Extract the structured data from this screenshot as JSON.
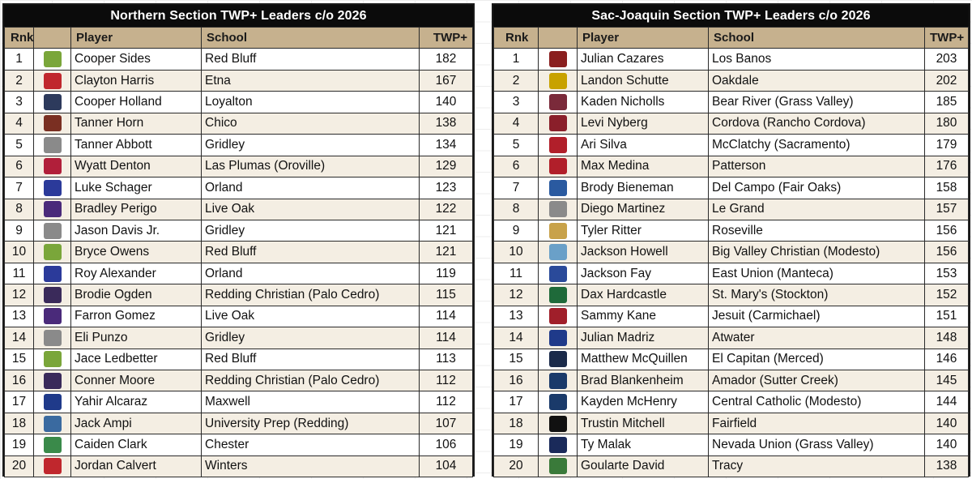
{
  "north": {
    "title": "Northern Section TWP+ Leaders c/o 2026",
    "headers": {
      "rank": "Rnk",
      "player": "Player",
      "school": "School",
      "twp": "TWP+"
    },
    "rows": [
      {
        "rank": "1",
        "player": "Cooper Sides",
        "school": "Red Bluff",
        "twp": "182",
        "logo": "spartan-helmet-icon",
        "color": "#7aa63a"
      },
      {
        "rank": "2",
        "player": "Clayton Harris",
        "school": "Etna",
        "twp": "167",
        "logo": "lion-icon",
        "color": "#c0272d"
      },
      {
        "rank": "3",
        "player": "Cooper Holland",
        "school": "Loyalton",
        "twp": "140",
        "logo": "grizzly-icon",
        "color": "#2d3a5c"
      },
      {
        "rank": "4",
        "player": "Tanner Horn",
        "school": "Chico",
        "twp": "138",
        "logo": "cougar-c-icon",
        "color": "#7a2f22"
      },
      {
        "rank": "5",
        "player": "Tanner Abbott",
        "school": "Gridley",
        "twp": "134",
        "logo": "bulldog-icon",
        "color": "#8a8a8a"
      },
      {
        "rank": "6",
        "player": "Wyatt Denton",
        "school": "Las Plumas (Oroville)",
        "twp": "129",
        "logo": "thunderbird-icon",
        "color": "#b11f3a"
      },
      {
        "rank": "7",
        "player": "Luke Schager",
        "school": "Orland",
        "twp": "123",
        "logo": "letter-o-icon",
        "color": "#2b3a9a"
      },
      {
        "rank": "8",
        "player": "Bradley Perigo",
        "school": "Live Oak",
        "twp": "122",
        "logo": "lion-icon",
        "color": "#4a2a7a"
      },
      {
        "rank": "9",
        "player": "Jason Davis Jr.",
        "school": "Gridley",
        "twp": "121",
        "logo": "bulldog-icon",
        "color": "#8a8a8a"
      },
      {
        "rank": "10",
        "player": "Bryce Owens",
        "school": "Red Bluff",
        "twp": "121",
        "logo": "spartan-helmet-icon",
        "color": "#7aa63a"
      },
      {
        "rank": "11",
        "player": "Roy Alexander",
        "school": "Orland",
        "twp": "119",
        "logo": "letter-o-icon",
        "color": "#2b3a9a"
      },
      {
        "rank": "12",
        "player": "Brodie Ogden",
        "school": "Redding Christian (Palo Cedro)",
        "twp": "115",
        "logo": "panther-icon",
        "color": "#3a2a5a"
      },
      {
        "rank": "13",
        "player": "Farron Gomez",
        "school": "Live Oak",
        "twp": "114",
        "logo": "lion-icon",
        "color": "#4a2a7a"
      },
      {
        "rank": "14",
        "player": "Eli Punzo",
        "school": "Gridley",
        "twp": "114",
        "logo": "bulldog-icon",
        "color": "#8a8a8a"
      },
      {
        "rank": "15",
        "player": "Jace Ledbetter",
        "school": "Red Bluff",
        "twp": "113",
        "logo": "spartan-helmet-icon",
        "color": "#7aa63a"
      },
      {
        "rank": "16",
        "player": "Conner Moore",
        "school": "Redding Christian (Palo Cedro)",
        "twp": "112",
        "logo": "panther-icon",
        "color": "#3a2a5a"
      },
      {
        "rank": "17",
        "player": "Yahir Alcaraz",
        "school": "Maxwell",
        "twp": "112",
        "logo": "letter-m-icon",
        "color": "#1f3a8a"
      },
      {
        "rank": "18",
        "player": "Jack Ampi",
        "school": "University Prep (Redding)",
        "twp": "107",
        "logo": "letter-u-icon",
        "color": "#3a6aa0"
      },
      {
        "rank": "19",
        "player": "Caiden Clark",
        "school": "Chester",
        "twp": "106",
        "logo": "volcano-a-icon",
        "color": "#3a8a4a"
      },
      {
        "rank": "20",
        "player": "Jordan Calvert",
        "school": "Winters",
        "twp": "104",
        "logo": "warrior-w-icon",
        "color": "#c0272d"
      }
    ]
  },
  "sac": {
    "title": "Sac-Joaquin Section TWP+ Leaders c/o 2026",
    "headers": {
      "rank": "Rnk",
      "player": "Player",
      "school": "School",
      "twp": "TWP+"
    },
    "rows": [
      {
        "rank": "1",
        "player": "Julian Cazares",
        "school": "Los Banos",
        "twp": "203",
        "logo": "tiger-icon",
        "color": "#8a1f1f"
      },
      {
        "rank": "2",
        "player": "Landon Schutte",
        "school": "Oakdale",
        "twp": "202",
        "logo": "mustang-icon",
        "color": "#c8a200"
      },
      {
        "rank": "3",
        "player": "Kaden Nicholls",
        "school": "Bear River (Grass Valley)",
        "twp": "185",
        "logo": "br-monogram-icon",
        "color": "#7a2a3a"
      },
      {
        "rank": "4",
        "player": "Levi Nyberg",
        "school": "Cordova (Rancho Cordova)",
        "twp": "180",
        "logo": "lancer-icon",
        "color": "#8a1f2a"
      },
      {
        "rank": "5",
        "player": "Ari Silva",
        "school": "McClatchy (Sacramento)",
        "twp": "179",
        "logo": "lions-icon",
        "color": "#b11f2a"
      },
      {
        "rank": "6",
        "player": "Max Medina",
        "school": "Patterson",
        "twp": "176",
        "logo": "letter-p-icon",
        "color": "#b11f2a"
      },
      {
        "rank": "7",
        "player": "Brody Bieneman",
        "school": "Del Campo (Fair Oaks)",
        "twp": "158",
        "logo": "cougar-icon",
        "color": "#2a5aa0"
      },
      {
        "rank": "8",
        "player": "Diego Martinez",
        "school": "Le Grand",
        "twp": "157",
        "logo": "bulldog-icon",
        "color": "#8a8a8a"
      },
      {
        "rank": "9",
        "player": "Tyler Ritter",
        "school": "Roseville",
        "twp": "156",
        "logo": "tiger-icon",
        "color": "#c8a24a"
      },
      {
        "rank": "10",
        "player": "Jackson Howell",
        "school": "Big Valley Christian (Modesto)",
        "twp": "156",
        "logo": "lion-icon",
        "color": "#6aa0c8"
      },
      {
        "rank": "11",
        "player": "Jackson Fay",
        "school": "East Union (Manteca)",
        "twp": "153",
        "logo": "lancer-icon",
        "color": "#2a4a9a"
      },
      {
        "rank": "12",
        "player": "Dax Hardcastle",
        "school": "St. Mary's (Stockton)",
        "twp": "152",
        "logo": "shamrock-icon",
        "color": "#1f6a3a"
      },
      {
        "rank": "13",
        "player": "Sammy Kane",
        "school": "Jesuit (Carmichael)",
        "twp": "151",
        "logo": "marauder-icon",
        "color": "#a01f2a"
      },
      {
        "rank": "14",
        "player": "Julian Madriz",
        "school": "Atwater",
        "twp": "148",
        "logo": "falcon-icon",
        "color": "#1f3a8a"
      },
      {
        "rank": "15",
        "player": "Matthew McQuillen",
        "school": "El Capitan (Merced)",
        "twp": "146",
        "logo": "gauchos-icon",
        "color": "#1a2a4a"
      },
      {
        "rank": "16",
        "player": "Brad Blankenheim",
        "school": "Amador (Sutter Creek)",
        "twp": "145",
        "logo": "buffalo-icon",
        "color": "#1a3a6a"
      },
      {
        "rank": "17",
        "player": "Kayden McHenry",
        "school": "Central Catholic (Modesto)",
        "twp": "144",
        "logo": "cc-monogram-icon",
        "color": "#1a3a6a"
      },
      {
        "rank": "18",
        "player": "Trustin Mitchell",
        "school": "Fairfield",
        "twp": "140",
        "logo": "falcon-icon",
        "color": "#111111"
      },
      {
        "rank": "19",
        "player": "Ty Malak",
        "school": "Nevada Union (Grass Valley)",
        "twp": "140",
        "logo": "nu-monogram-icon",
        "color": "#1a2a5a"
      },
      {
        "rank": "20",
        "player": "Goularte David",
        "school": "Tracy",
        "twp": "138",
        "logo": "bulldog-icon",
        "color": "#3a7a3a"
      }
    ]
  }
}
